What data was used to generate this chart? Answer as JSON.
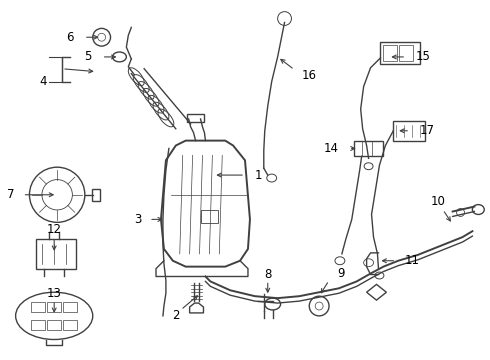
{
  "bg_color": "#ffffff",
  "line_color": "#404040",
  "text_color": "#000000",
  "fig_width": 4.9,
  "fig_height": 3.6,
  "dpi": 100
}
